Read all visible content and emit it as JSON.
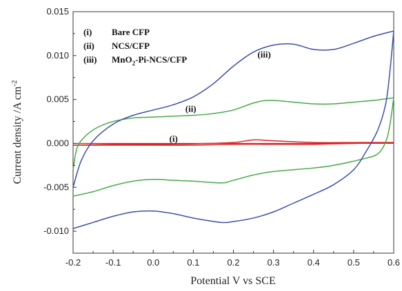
{
  "chart_data": {
    "type": "line",
    "xlabel": "Potential V vs SCE",
    "ylabel_main": "Current density /A cm",
    "ylabel_sup": "-2",
    "xlim": [
      -0.2,
      0.6
    ],
    "ylim": [
      -0.0125,
      0.015
    ],
    "x_ticks": [
      -0.2,
      -0.1,
      0.0,
      0.1,
      0.2,
      0.3,
      0.4,
      0.5,
      0.6
    ],
    "x_tick_labels": [
      "-0.2",
      "-0.1",
      "0.0",
      "0.1",
      "0.2",
      "0.3",
      "0.4",
      "0.5",
      "0.6"
    ],
    "y_ticks": [
      -0.01,
      -0.005,
      0.0,
      0.005,
      0.01,
      0.015
    ],
    "y_tick_labels": [
      "-0.010",
      "-0.005",
      "0.000",
      "0.005",
      "0.010",
      "0.015"
    ],
    "zero_line_color": "#dd2222",
    "legend": {
      "placement": "top-left",
      "entries": [
        {
          "num": "(i)",
          "text": "Bare CFP"
        },
        {
          "num": "(ii)",
          "text": "NCS/CFP"
        },
        {
          "num": "(iii)",
          "text_pre": "MnO",
          "text_sub": "2",
          "text_post": "-Pi-NCS/CFP"
        }
      ]
    },
    "annotations": [
      {
        "text": "(i)",
        "x": 0.04,
        "y": 0.0002
      },
      {
        "text": "(ii)",
        "x": 0.08,
        "y": 0.0036
      },
      {
        "text": "(iii)",
        "x": 0.26,
        "y": 0.0098
      }
    ],
    "series": [
      {
        "label": "(i)",
        "color": "#dd2222",
        "forward": [
          [
            -0.2,
            -0.0002
          ],
          [
            -0.1,
            -0.0001
          ],
          [
            0.0,
            -0.0001
          ],
          [
            0.1,
            -5e-05
          ],
          [
            0.2,
            0.0001
          ],
          [
            0.25,
            0.0004
          ],
          [
            0.3,
            0.0003
          ],
          [
            0.4,
            0.0001
          ],
          [
            0.5,
            0.0001
          ],
          [
            0.6,
            0.0001
          ]
        ],
        "reverse": [
          [
            0.6,
            0.0001
          ],
          [
            0.5,
            0.0
          ],
          [
            0.4,
            -0.0001
          ],
          [
            0.3,
            -0.0001
          ],
          [
            0.2,
            -0.0001
          ],
          [
            0.1,
            -0.0002
          ],
          [
            0.0,
            -0.0002
          ],
          [
            -0.2,
            -0.0002
          ]
        ]
      },
      {
        "label": "(ii)",
        "color": "#44aa44",
        "forward": [
          [
            -0.2,
            -0.003
          ],
          [
            -0.19,
            -0.0005
          ],
          [
            -0.17,
            0.0008
          ],
          [
            -0.14,
            0.0018
          ],
          [
            -0.1,
            0.0025
          ],
          [
            -0.05,
            0.0029
          ],
          [
            0.0,
            0.003
          ],
          [
            0.05,
            0.0031
          ],
          [
            0.1,
            0.0032
          ],
          [
            0.15,
            0.0034
          ],
          [
            0.2,
            0.0038
          ],
          [
            0.25,
            0.0046
          ],
          [
            0.29,
            0.0049
          ],
          [
            0.35,
            0.0047
          ],
          [
            0.4,
            0.0045
          ],
          [
            0.45,
            0.0045
          ],
          [
            0.5,
            0.0047
          ],
          [
            0.55,
            0.0049
          ],
          [
            0.6,
            0.0052
          ]
        ],
        "reverse": [
          [
            0.6,
            0.0052
          ],
          [
            0.59,
            0.002
          ],
          [
            0.58,
            0.0002
          ],
          [
            0.56,
            -0.0012
          ],
          [
            0.52,
            -0.0018
          ],
          [
            0.45,
            -0.0025
          ],
          [
            0.4,
            -0.0028
          ],
          [
            0.3,
            -0.0032
          ],
          [
            0.25,
            -0.0036
          ],
          [
            0.2,
            -0.0042
          ],
          [
            0.17,
            -0.0045
          ],
          [
            0.1,
            -0.0043
          ],
          [
            0.05,
            -0.0042
          ],
          [
            0.0,
            -0.0041
          ],
          [
            -0.05,
            -0.0043
          ],
          [
            -0.1,
            -0.0048
          ],
          [
            -0.15,
            -0.0055
          ],
          [
            -0.2,
            -0.006
          ]
        ]
      },
      {
        "label": "(iii)",
        "color": "#3a4fa8",
        "forward": [
          [
            -0.2,
            -0.005
          ],
          [
            -0.18,
            -0.002
          ],
          [
            -0.15,
            0.0003
          ],
          [
            -0.1,
            0.0022
          ],
          [
            -0.05,
            0.0032
          ],
          [
            0.0,
            0.0038
          ],
          [
            0.05,
            0.0044
          ],
          [
            0.1,
            0.0053
          ],
          [
            0.15,
            0.0068
          ],
          [
            0.2,
            0.0088
          ],
          [
            0.25,
            0.0104
          ],
          [
            0.3,
            0.0112
          ],
          [
            0.35,
            0.0113
          ],
          [
            0.4,
            0.0107
          ],
          [
            0.45,
            0.0107
          ],
          [
            0.5,
            0.0114
          ],
          [
            0.55,
            0.0122
          ],
          [
            0.6,
            0.0128
          ]
        ],
        "reverse": [
          [
            0.6,
            0.0128
          ],
          [
            0.59,
            0.008
          ],
          [
            0.58,
            0.0045
          ],
          [
            0.56,
            0.0015
          ],
          [
            0.53,
            -0.001
          ],
          [
            0.5,
            -0.003
          ],
          [
            0.45,
            -0.0047
          ],
          [
            0.4,
            -0.0058
          ],
          [
            0.35,
            -0.0068
          ],
          [
            0.3,
            -0.0078
          ],
          [
            0.25,
            -0.0085
          ],
          [
            0.2,
            -0.0089
          ],
          [
            0.17,
            -0.009
          ],
          [
            0.1,
            -0.0085
          ],
          [
            0.05,
            -0.008
          ],
          [
            0.0,
            -0.0077
          ],
          [
            -0.05,
            -0.0078
          ],
          [
            -0.1,
            -0.0083
          ],
          [
            -0.15,
            -0.009
          ],
          [
            -0.2,
            -0.0097
          ]
        ]
      }
    ]
  }
}
